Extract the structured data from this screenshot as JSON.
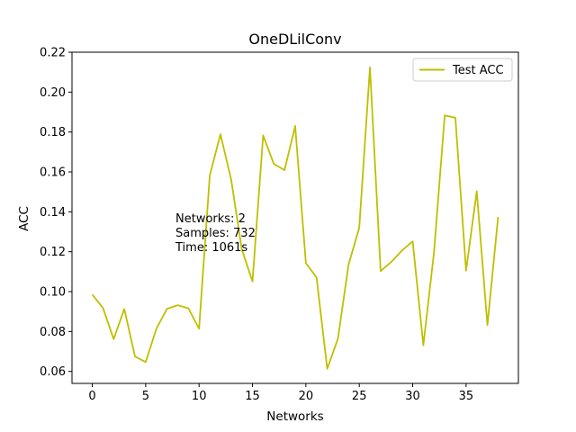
{
  "chart_data": {
    "type": "line",
    "title": "OneDLilConv",
    "xlabel": "Networks",
    "ylabel": "ACC",
    "xlim": [
      -1.9,
      39.9
    ],
    "ylim": [
      0.054,
      0.22
    ],
    "xticks": [
      0,
      5,
      10,
      15,
      20,
      25,
      30,
      35
    ],
    "yticks": [
      0.06,
      0.08,
      0.1,
      0.12,
      0.14,
      0.16,
      0.18,
      0.2,
      0.22
    ],
    "ytick_labels": [
      "0.06",
      "0.08",
      "0.10",
      "0.12",
      "0.14",
      "0.16",
      "0.18",
      "0.20",
      "0.22"
    ],
    "grid": false,
    "legend_position": "top-right",
    "series": [
      {
        "name": "Test ACC",
        "color": "#bfbf00",
        "x": [
          0,
          1,
          2,
          3,
          4,
          5,
          6,
          7,
          8,
          9,
          10,
          11,
          12,
          13,
          14,
          15,
          16,
          17,
          18,
          19,
          20,
          21,
          22,
          23,
          24,
          25,
          26,
          27,
          28,
          29,
          30,
          31,
          32,
          33,
          34,
          35,
          36,
          37,
          38
        ],
        "values": [
          0.0985,
          0.0918,
          0.0762,
          0.0913,
          0.0675,
          0.0647,
          0.0814,
          0.0914,
          0.0932,
          0.0916,
          0.0814,
          0.1582,
          0.1789,
          0.1563,
          0.1212,
          0.1051,
          0.1783,
          0.164,
          0.1609,
          0.183,
          0.1143,
          0.1071,
          0.0613,
          0.0764,
          0.1136,
          0.1321,
          0.2124,
          0.1103,
          0.1149,
          0.1206,
          0.1252,
          0.0731,
          0.1198,
          0.1883,
          0.1871,
          0.1105,
          0.1503,
          0.0832,
          0.1374
        ]
      }
    ],
    "annotation": [
      "Networks: 2",
      "Samples: 732",
      "Time: 1061s"
    ]
  }
}
